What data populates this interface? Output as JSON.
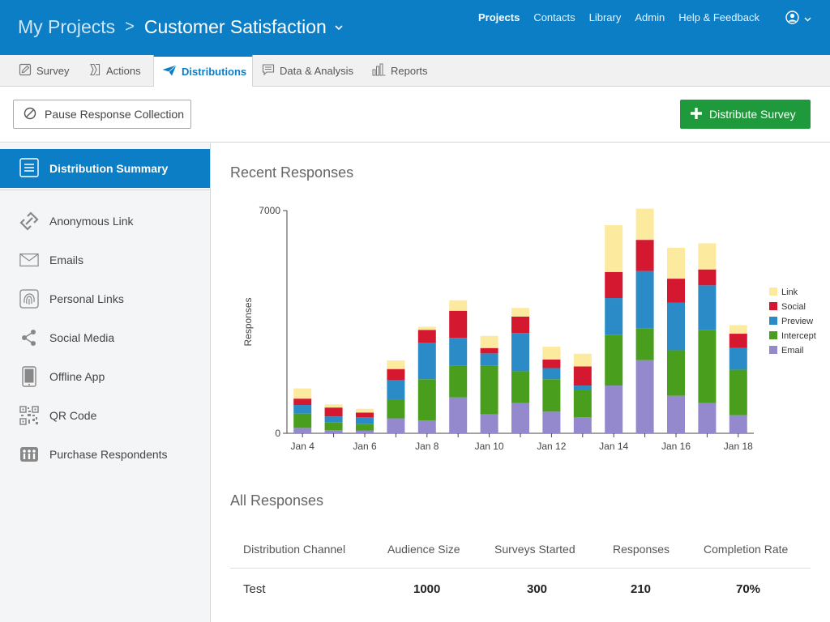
{
  "header": {
    "my_projects": "My Projects",
    "separator": ">",
    "project_name": "Customer Satisfaction",
    "nav": [
      "Projects",
      "Contacts",
      "Library",
      "Admin",
      "Help & Feedback"
    ],
    "active_nav": "Projects"
  },
  "tabs": [
    {
      "label": "Survey",
      "icon": "pencil-icon"
    },
    {
      "label": "Actions",
      "icon": "actions-icon"
    },
    {
      "label": "Distributions",
      "icon": "paper-plane-icon",
      "active": true
    },
    {
      "label": "Data & Analysis",
      "icon": "data-icon"
    },
    {
      "label": "Reports",
      "icon": "bar-chart-icon"
    }
  ],
  "toolbar": {
    "pause_label": "Pause Response Collection",
    "distribute_label": "Distribute Survey"
  },
  "sidebar": {
    "active_label": "Distribution Summary",
    "items": [
      {
        "label": "Anonymous Link",
        "icon": "link-icon"
      },
      {
        "label": "Emails",
        "icon": "envelope-icon"
      },
      {
        "label": "Personal Links",
        "icon": "fingerprint-icon"
      },
      {
        "label": "Social Media",
        "icon": "share-icon"
      },
      {
        "label": "Offline App",
        "icon": "tablet-icon"
      },
      {
        "label": "QR Code",
        "icon": "qr-code-icon"
      },
      {
        "label": "Purchase Respondents",
        "icon": "people-icon"
      }
    ]
  },
  "main": {
    "recent_title": "Recent Responses",
    "all_title": "All Responses"
  },
  "colors": {
    "Link": "#fcea9e",
    "Social": "#d3182f",
    "Preview": "#2a8bc6",
    "Intercept": "#4a9e1d",
    "Email": "#9389cc"
  },
  "chart_data": {
    "type": "bar",
    "stacked": true,
    "ylabel": "Responses",
    "ylim": [
      0,
      7000
    ],
    "yticks": [
      0,
      7000
    ],
    "categories": [
      "Jan 4",
      "Jan 5",
      "Jan 6",
      "Jan 7",
      "Jan 8",
      "Jan 9",
      "Jan 10",
      "Jan 11",
      "Jan 12",
      "Jan 13",
      "Jan 14",
      "Jan 15",
      "Jan 16",
      "Jan 17",
      "Jan 18"
    ],
    "xtick_labels": [
      "Jan 4",
      "",
      "Jan 6",
      "",
      "Jan 8",
      "",
      "Jan 10",
      "",
      "Jan 12",
      "",
      "Jan 14",
      "",
      "Jan 16",
      "",
      "Jan 18"
    ],
    "legend_order": [
      "Link",
      "Social",
      "Preview",
      "Intercept",
      "Email"
    ],
    "legend_position": "right",
    "series": [
      {
        "name": "Email",
        "values": [
          170,
          100,
          80,
          470,
          400,
          1130,
          600,
          950,
          680,
          500,
          1500,
          2300,
          1180,
          950,
          570
        ]
      },
      {
        "name": "Intercept",
        "values": [
          450,
          250,
          220,
          600,
          1300,
          1000,
          1530,
          1000,
          1020,
          850,
          1600,
          1000,
          1430,
          2300,
          1430
        ]
      },
      {
        "name": "Preview",
        "values": [
          270,
          180,
          200,
          600,
          1150,
          870,
          380,
          1200,
          350,
          150,
          1150,
          1800,
          1500,
          1400,
          680
        ]
      },
      {
        "name": "Social",
        "values": [
          200,
          280,
          150,
          350,
          400,
          850,
          170,
          520,
          270,
          600,
          820,
          980,
          750,
          500,
          450
        ]
      },
      {
        "name": "Link",
        "values": [
          320,
          100,
          120,
          270,
          100,
          330,
          380,
          270,
          400,
          400,
          1470,
          980,
          970,
          820,
          270
        ]
      }
    ]
  },
  "table": {
    "headers": [
      "Distribution Channel",
      "Audience Size",
      "Surveys Started",
      "Responses",
      "Completion Rate"
    ],
    "rows": [
      [
        "Test",
        "1000",
        "300",
        "210",
        "70%"
      ]
    ]
  }
}
